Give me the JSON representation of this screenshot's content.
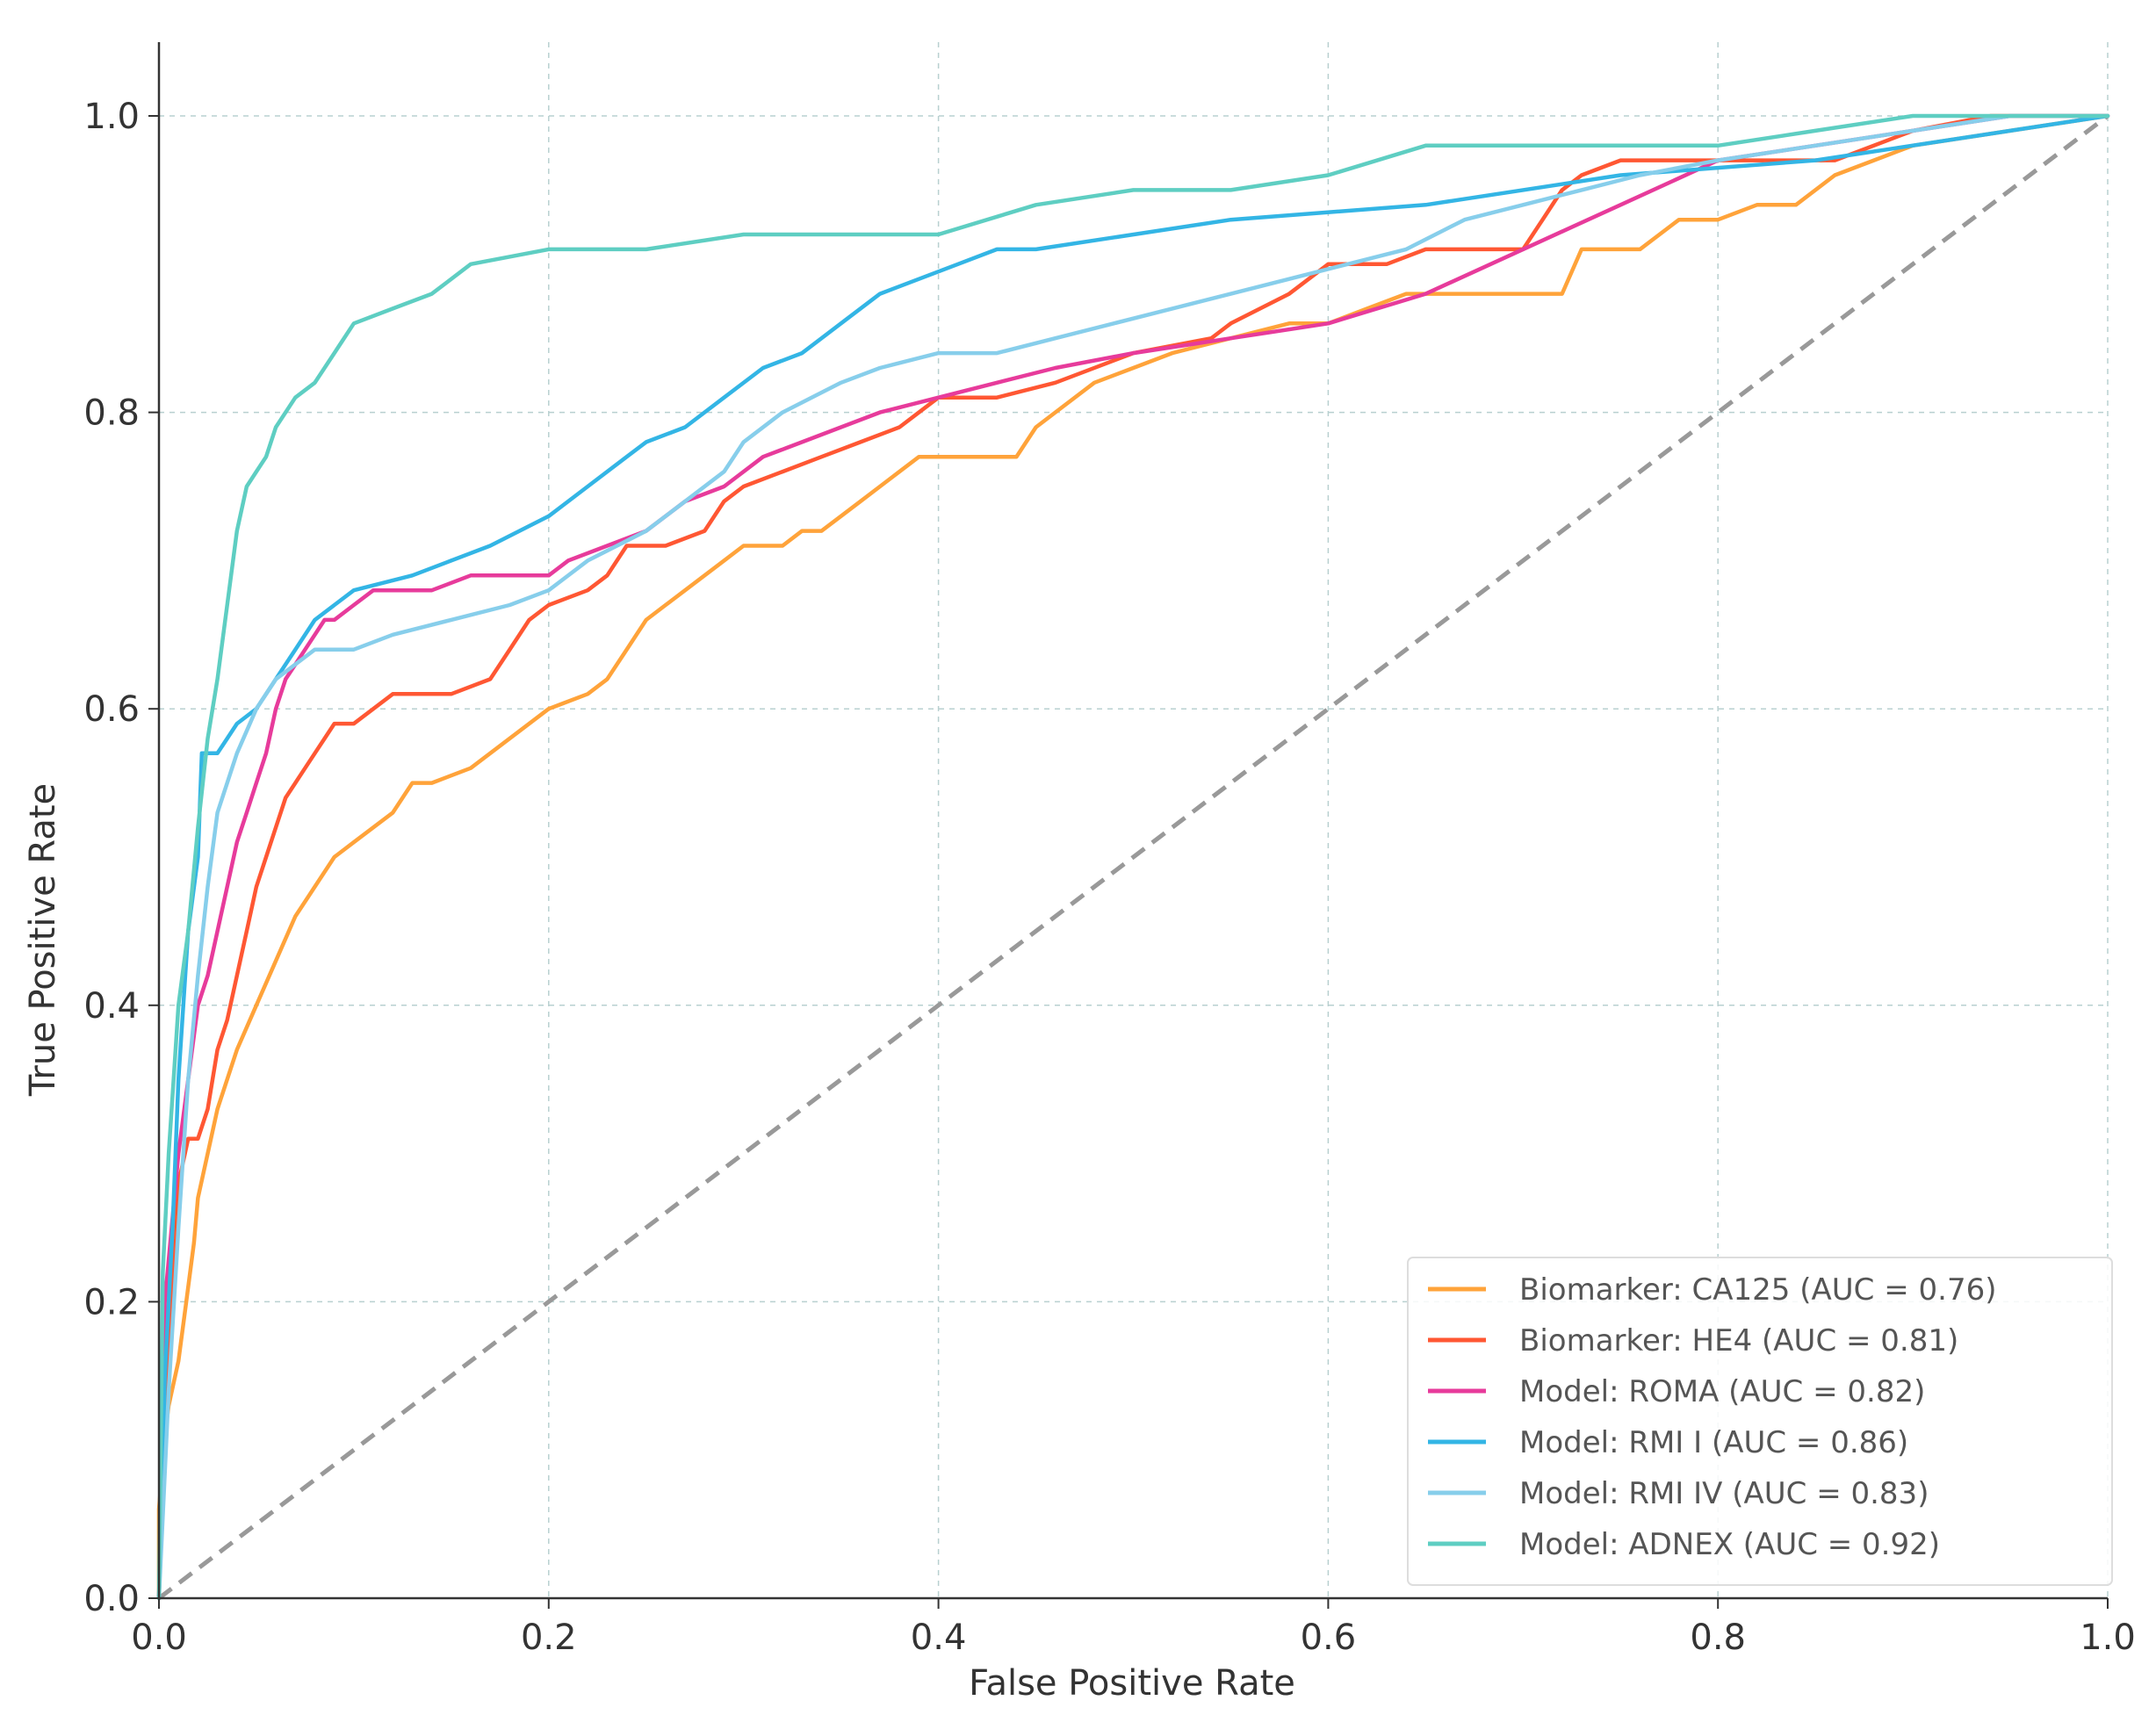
{
  "chart_data": {
    "type": "line",
    "title": "",
    "xlabel": "False Positive Rate",
    "ylabel": "True Positive Rate",
    "xlim": [
      0,
      1
    ],
    "ylim": [
      0,
      1.05
    ],
    "xticks": [
      "0.0",
      "0.2",
      "0.4",
      "0.6",
      "0.8",
      "1.0"
    ],
    "yticks": [
      "0.0",
      "0.2",
      "0.4",
      "0.6",
      "0.8",
      "1.0"
    ],
    "grid": true,
    "legend_position": "lower-right",
    "reference_line": {
      "name": "chance",
      "x": [
        0,
        1
      ],
      "y": [
        0,
        1
      ],
      "color": "#999999",
      "style": "dashed"
    },
    "series": [
      {
        "name": "Biomarker: CA125 (AUC = 0.76)",
        "color": "#FFA33A",
        "x": [
          0,
          0,
          0.003,
          0.005,
          0.01,
          0.014,
          0.018,
          0.02,
          0.025,
          0.03,
          0.035,
          0.04,
          0.05,
          0.06,
          0.07,
          0.08,
          0.09,
          0.1,
          0.12,
          0.13,
          0.14,
          0.16,
          0.17,
          0.19,
          0.2,
          0.22,
          0.23,
          0.24,
          0.25,
          0.26,
          0.27,
          0.28,
          0.29,
          0.3,
          0.32,
          0.33,
          0.34,
          0.35,
          0.36,
          0.37,
          0.38,
          0.39,
          0.4,
          0.42,
          0.44,
          0.45,
          0.46,
          0.48,
          0.5,
          0.52,
          0.55,
          0.58,
          0.6,
          0.62,
          0.64,
          0.66,
          0.68,
          0.7,
          0.72,
          0.73,
          0.76,
          0.78,
          0.8,
          0.82,
          0.84,
          0.86,
          0.88,
          0.9,
          0.95,
          1.0
        ],
        "y": [
          0,
          0.06,
          0.11,
          0.13,
          0.16,
          0.2,
          0.24,
          0.27,
          0.3,
          0.33,
          0.35,
          0.37,
          0.4,
          0.43,
          0.46,
          0.48,
          0.5,
          0.51,
          0.53,
          0.55,
          0.55,
          0.56,
          0.57,
          0.59,
          0.6,
          0.61,
          0.62,
          0.64,
          0.66,
          0.67,
          0.68,
          0.69,
          0.7,
          0.71,
          0.71,
          0.72,
          0.72,
          0.73,
          0.74,
          0.75,
          0.76,
          0.77,
          0.77,
          0.77,
          0.77,
          0.79,
          0.8,
          0.82,
          0.83,
          0.84,
          0.85,
          0.86,
          0.86,
          0.87,
          0.88,
          0.88,
          0.88,
          0.88,
          0.88,
          0.91,
          0.91,
          0.93,
          0.93,
          0.94,
          0.94,
          0.96,
          0.97,
          0.98,
          0.99,
          1.0
        ]
      },
      {
        "name": "Biomarker: HE4 (AUC = 0.81)",
        "color": "#FF5733",
        "x": [
          0,
          0.003,
          0.005,
          0.01,
          0.015,
          0.02,
          0.025,
          0.03,
          0.035,
          0.04,
          0.045,
          0.05,
          0.055,
          0.06,
          0.065,
          0.07,
          0.075,
          0.08,
          0.085,
          0.09,
          0.1,
          0.12,
          0.15,
          0.17,
          0.18,
          0.19,
          0.2,
          0.22,
          0.23,
          0.24,
          0.26,
          0.28,
          0.29,
          0.3,
          0.32,
          0.34,
          0.36,
          0.38,
          0.39,
          0.4,
          0.43,
          0.46,
          0.5,
          0.54,
          0.55,
          0.58,
          0.6,
          0.63,
          0.65,
          0.68,
          0.7,
          0.71,
          0.72,
          0.73,
          0.75,
          0.78,
          0.82,
          0.86,
          0.9,
          0.94,
          1.0
        ],
        "y": [
          0,
          0.13,
          0.18,
          0.28,
          0.31,
          0.31,
          0.33,
          0.37,
          0.39,
          0.42,
          0.45,
          0.48,
          0.5,
          0.52,
          0.54,
          0.55,
          0.56,
          0.57,
          0.58,
          0.59,
          0.59,
          0.61,
          0.61,
          0.62,
          0.64,
          0.66,
          0.67,
          0.68,
          0.69,
          0.71,
          0.71,
          0.72,
          0.74,
          0.75,
          0.76,
          0.77,
          0.78,
          0.79,
          0.8,
          0.81,
          0.81,
          0.82,
          0.84,
          0.85,
          0.86,
          0.88,
          0.9,
          0.9,
          0.91,
          0.91,
          0.91,
          0.93,
          0.95,
          0.96,
          0.97,
          0.97,
          0.97,
          0.97,
          0.99,
          1.0,
          1.0
        ]
      },
      {
        "name": "Model: ROMA (AUC = 0.82)",
        "color": "#E73B9B",
        "x": [
          0,
          0.003,
          0.01,
          0.015,
          0.02,
          0.025,
          0.03,
          0.035,
          0.04,
          0.045,
          0.05,
          0.055,
          0.06,
          0.065,
          0.07,
          0.075,
          0.08,
          0.085,
          0.09,
          0.1,
          0.11,
          0.12,
          0.14,
          0.16,
          0.18,
          0.2,
          0.21,
          0.23,
          0.25,
          0.27,
          0.29,
          0.31,
          0.33,
          0.35,
          0.37,
          0.4,
          0.43,
          0.46,
          0.5,
          0.55,
          0.6,
          0.65,
          0.7,
          0.75,
          0.8,
          0.85,
          0.9,
          0.95,
          1.0
        ],
        "y": [
          0,
          0.2,
          0.3,
          0.35,
          0.4,
          0.42,
          0.45,
          0.48,
          0.51,
          0.53,
          0.55,
          0.57,
          0.6,
          0.62,
          0.63,
          0.64,
          0.65,
          0.66,
          0.66,
          0.67,
          0.68,
          0.68,
          0.68,
          0.69,
          0.69,
          0.69,
          0.7,
          0.71,
          0.72,
          0.74,
          0.75,
          0.77,
          0.78,
          0.79,
          0.8,
          0.81,
          0.82,
          0.83,
          0.84,
          0.85,
          0.86,
          0.88,
          0.91,
          0.94,
          0.97,
          0.98,
          0.99,
          1.0,
          1.0
        ]
      },
      {
        "name": "Model: RMI I (AUC = 0.86)",
        "color": "#33B5E5",
        "x": [
          0,
          0.003,
          0.007,
          0.01,
          0.015,
          0.02,
          0.022,
          0.025,
          0.03,
          0.035,
          0.04,
          0.05,
          0.06,
          0.07,
          0.08,
          0.09,
          0.1,
          0.13,
          0.15,
          0.17,
          0.2,
          0.22,
          0.24,
          0.25,
          0.27,
          0.29,
          0.31,
          0.33,
          0.35,
          0.37,
          0.39,
          0.41,
          0.43,
          0.45,
          0.55,
          0.65,
          0.75,
          0.85,
          1.0
        ],
        "y": [
          0,
          0.15,
          0.25,
          0.35,
          0.45,
          0.5,
          0.57,
          0.57,
          0.57,
          0.58,
          0.59,
          0.6,
          0.62,
          0.64,
          0.66,
          0.67,
          0.68,
          0.69,
          0.7,
          0.71,
          0.73,
          0.75,
          0.77,
          0.78,
          0.79,
          0.81,
          0.83,
          0.84,
          0.86,
          0.88,
          0.89,
          0.9,
          0.91,
          0.91,
          0.93,
          0.94,
          0.96,
          0.97,
          1.0
        ]
      },
      {
        "name": "Model: RMI IV (AUC = 0.83)",
        "color": "#87CEEB",
        "x": [
          0,
          0.005,
          0.01,
          0.015,
          0.02,
          0.025,
          0.03,
          0.04,
          0.05,
          0.06,
          0.08,
          0.1,
          0.12,
          0.15,
          0.18,
          0.2,
          0.22,
          0.25,
          0.27,
          0.29,
          0.3,
          0.32,
          0.35,
          0.37,
          0.4,
          0.43,
          0.46,
          0.49,
          0.52,
          0.55,
          0.58,
          0.61,
          0.64,
          0.67,
          0.7,
          0.73,
          0.76,
          0.8,
          0.85,
          0.9,
          0.95,
          1.0
        ],
        "y": [
          0,
          0.14,
          0.25,
          0.35,
          0.42,
          0.48,
          0.53,
          0.57,
          0.6,
          0.62,
          0.64,
          0.64,
          0.65,
          0.66,
          0.67,
          0.68,
          0.7,
          0.72,
          0.74,
          0.76,
          0.78,
          0.8,
          0.82,
          0.83,
          0.84,
          0.84,
          0.85,
          0.86,
          0.87,
          0.88,
          0.89,
          0.9,
          0.91,
          0.93,
          0.94,
          0.95,
          0.96,
          0.97,
          0.98,
          0.99,
          1.0,
          1.0
        ]
      },
      {
        "name": "Model: ADNEX (AUC = 0.92)",
        "color": "#5ECEC2",
        "x": [
          0,
          0.002,
          0.005,
          0.008,
          0.01,
          0.015,
          0.02,
          0.025,
          0.03,
          0.035,
          0.04,
          0.045,
          0.05,
          0.055,
          0.06,
          0.07,
          0.08,
          0.09,
          0.1,
          0.12,
          0.14,
          0.16,
          0.2,
          0.25,
          0.3,
          0.35,
          0.4,
          0.45,
          0.5,
          0.55,
          0.6,
          0.65,
          0.7,
          0.75,
          0.8,
          0.85,
          0.9,
          0.95,
          1.0
        ],
        "y": [
          0,
          0.22,
          0.3,
          0.36,
          0.4,
          0.45,
          0.52,
          0.58,
          0.62,
          0.67,
          0.72,
          0.75,
          0.76,
          0.77,
          0.79,
          0.81,
          0.82,
          0.84,
          0.86,
          0.87,
          0.88,
          0.9,
          0.91,
          0.91,
          0.92,
          0.92,
          0.92,
          0.94,
          0.95,
          0.95,
          0.96,
          0.98,
          0.98,
          0.98,
          0.98,
          0.99,
          1.0,
          1.0,
          1.0
        ]
      }
    ]
  }
}
